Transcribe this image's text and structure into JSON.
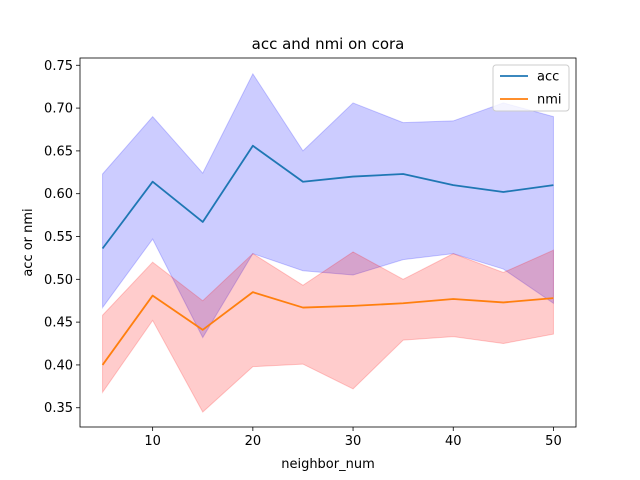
{
  "chart_data": {
    "type": "line",
    "title": "acc and nmi on cora",
    "xlabel": "neighbor_num",
    "ylabel": "acc or nmi",
    "x": [
      5,
      10,
      15,
      20,
      25,
      30,
      35,
      40,
      45,
      50
    ],
    "xticks": [
      10,
      20,
      30,
      40,
      50
    ],
    "yticks": [
      0.35,
      0.4,
      0.45,
      0.5,
      0.55,
      0.6,
      0.65,
      0.7,
      0.75
    ],
    "ytick_labels": [
      "0.35",
      "0.40",
      "0.45",
      "0.50",
      "0.55",
      "0.60",
      "0.65",
      "0.70",
      "0.75"
    ],
    "xlim": [
      2.75,
      52.25
    ],
    "ylim": [
      0.3275,
      0.7585
    ],
    "grid": false,
    "legend_position": "upper right",
    "series": [
      {
        "name": "acc",
        "color": "#1f77b4",
        "band_color": "#0000ff",
        "values": [
          0.536,
          0.614,
          0.567,
          0.656,
          0.614,
          0.62,
          0.623,
          0.61,
          0.602,
          0.61
        ],
        "upper": [
          0.623,
          0.69,
          0.624,
          0.74,
          0.65,
          0.706,
          0.683,
          0.685,
          0.706,
          0.69
        ],
        "lower": [
          0.467,
          0.547,
          0.432,
          0.53,
          0.51,
          0.505,
          0.523,
          0.53,
          0.512,
          0.472
        ]
      },
      {
        "name": "nmi",
        "color": "#ff7f0e",
        "band_color": "#ff0000",
        "values": [
          0.4,
          0.481,
          0.441,
          0.485,
          0.467,
          0.469,
          0.472,
          0.477,
          0.473,
          0.478
        ],
        "upper": [
          0.458,
          0.52,
          0.475,
          0.53,
          0.493,
          0.532,
          0.5,
          0.53,
          0.508,
          0.534
        ],
        "lower": [
          0.368,
          0.452,
          0.345,
          0.398,
          0.401,
          0.372,
          0.429,
          0.433,
          0.425,
          0.436
        ]
      }
    ]
  }
}
